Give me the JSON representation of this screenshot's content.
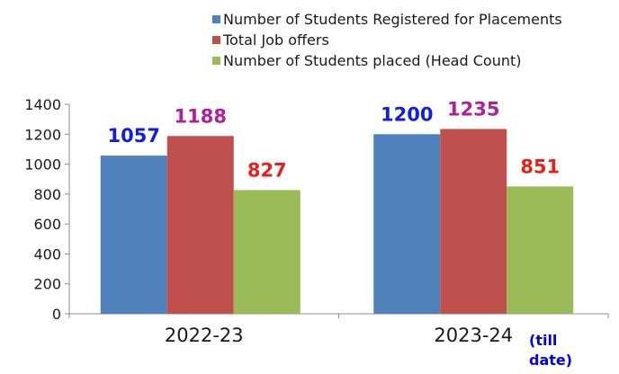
{
  "chart_data": {
    "type": "bar",
    "categories": [
      "2022-23",
      "2023-24"
    ],
    "series": [
      {
        "name": "Number of Students Registered for Placements",
        "values": [
          1057,
          1200
        ],
        "color": "#4f81bd",
        "label_color": "#0f1ee6"
      },
      {
        "name": "Total Job offers",
        "values": [
          1188,
          1235
        ],
        "color": "#c0504d",
        "label_color": "#b0209a"
      },
      {
        "name": "Number of Students placed (Head Count)",
        "values": [
          827,
          851
        ],
        "color": "#9bbb59",
        "label_color": "#e8201a"
      }
    ],
    "ylim": [
      0,
      1400
    ],
    "yticks": [
      "0",
      "200",
      "400",
      "600",
      "800",
      "1000",
      "1200",
      "1400"
    ],
    "grid": false,
    "legend_position": "top-right"
  },
  "annotation": "(till\ndate)"
}
